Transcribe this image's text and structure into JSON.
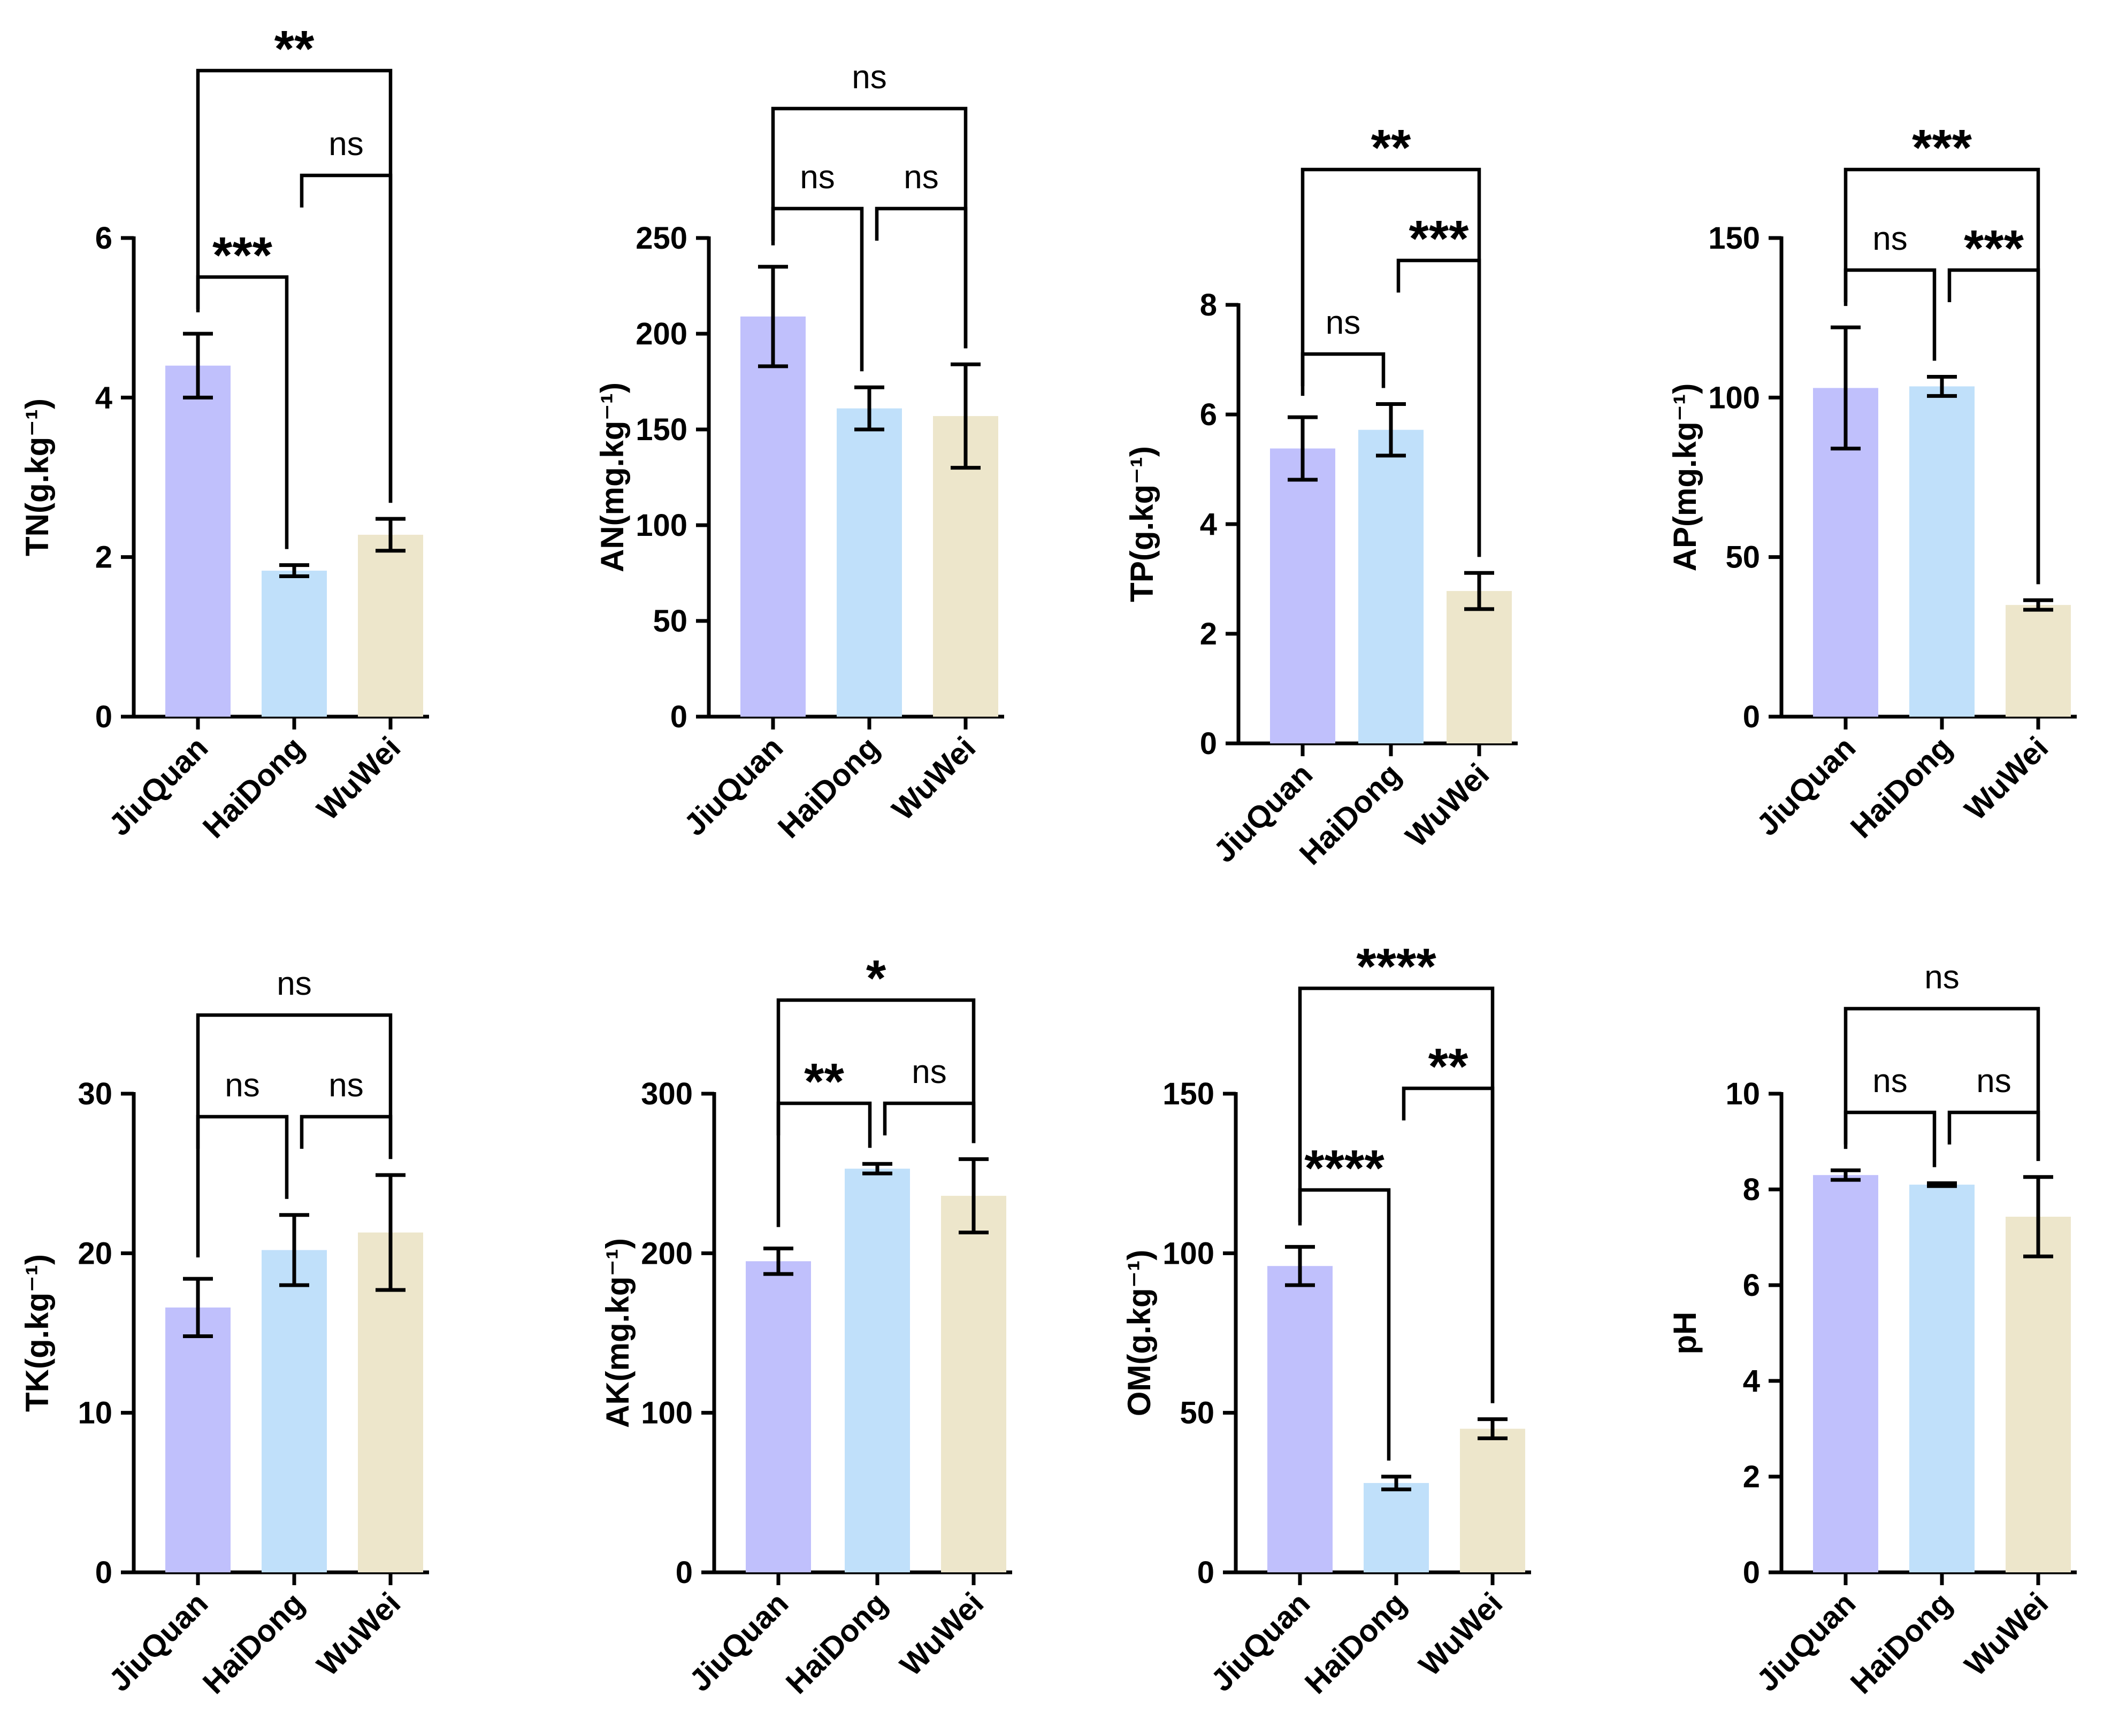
{
  "colors": {
    "JiuQuan": "#c0c0fc",
    "HaiDong": "#c0e0fa",
    "WuWei": "#ede6cb",
    "ink": "#000000"
  },
  "chart_data": [
    {
      "type": "bar",
      "ylabel": "TN(g.kg⁻¹)",
      "categories": [
        "JiuQuan",
        "HaiDong",
        "WuWei"
      ],
      "values": [
        4.4,
        1.83,
        2.28
      ],
      "errors": [
        0.4,
        0.07,
        0.2
      ],
      "ylim": [
        0,
        6
      ],
      "yticks": [
        0,
        2,
        4,
        6
      ],
      "comparisons": [
        {
          "pair": [
            0,
            1
          ],
          "label": "***"
        },
        {
          "pair": [
            1,
            2
          ],
          "label": "ns"
        },
        {
          "pair": [
            0,
            2
          ],
          "label": "**"
        }
      ]
    },
    {
      "type": "bar",
      "ylabel": "AN(mg.kg⁻¹)",
      "categories": [
        "JiuQuan",
        "HaiDong",
        "WuWei"
      ],
      "values": [
        209,
        161,
        157
      ],
      "errors": [
        26,
        11,
        27
      ],
      "ylim": [
        0,
        250
      ],
      "yticks": [
        0,
        50,
        100,
        150,
        200,
        250
      ],
      "comparisons": [
        {
          "pair": [
            0,
            1
          ],
          "label": "ns"
        },
        {
          "pair": [
            1,
            2
          ],
          "label": "ns"
        },
        {
          "pair": [
            0,
            2
          ],
          "label": "ns"
        }
      ]
    },
    {
      "type": "bar",
      "ylabel": "TP(g.kg⁻¹)",
      "categories": [
        "JiuQuan",
        "HaiDong",
        "WuWei"
      ],
      "values": [
        5.38,
        5.72,
        2.78
      ],
      "errors": [
        0.57,
        0.47,
        0.33
      ],
      "ylim": [
        0,
        8
      ],
      "yticks": [
        0,
        2,
        4,
        6,
        8
      ],
      "comparisons": [
        {
          "pair": [
            0,
            1
          ],
          "label": "ns"
        },
        {
          "pair": [
            1,
            2
          ],
          "label": "***"
        },
        {
          "pair": [
            0,
            2
          ],
          "label": "**"
        }
      ]
    },
    {
      "type": "bar",
      "ylabel": "AP(mg.kg⁻¹)",
      "categories": [
        "JiuQuan",
        "HaiDong",
        "WuWei"
      ],
      "values": [
        103,
        103.5,
        35
      ],
      "errors": [
        19,
        3,
        1.5
      ],
      "ylim": [
        0,
        150
      ],
      "yticks": [
        0,
        50,
        100,
        150
      ],
      "comparisons": [
        {
          "pair": [
            0,
            1
          ],
          "label": "ns"
        },
        {
          "pair": [
            1,
            2
          ],
          "label": "***"
        },
        {
          "pair": [
            0,
            2
          ],
          "label": "***"
        }
      ]
    },
    {
      "type": "bar",
      "ylabel": "TK(g.kg⁻¹)",
      "categories": [
        "JiuQuan",
        "HaiDong",
        "WuWei"
      ],
      "values": [
        16.6,
        20.2,
        21.3
      ],
      "errors": [
        1.8,
        2.2,
        3.6
      ],
      "ylim": [
        0,
        30
      ],
      "yticks": [
        0,
        10,
        20,
        30
      ],
      "comparisons": [
        {
          "pair": [
            0,
            1
          ],
          "label": "ns"
        },
        {
          "pair": [
            1,
            2
          ],
          "label": "ns"
        },
        {
          "pair": [
            0,
            2
          ],
          "label": "ns"
        }
      ]
    },
    {
      "type": "bar",
      "ylabel": "AK(mg.kg⁻¹)",
      "categories": [
        "JiuQuan",
        "HaiDong",
        "WuWei"
      ],
      "values": [
        195,
        253,
        236
      ],
      "errors": [
        8,
        3,
        23
      ],
      "ylim": [
        0,
        300
      ],
      "yticks": [
        0,
        100,
        200,
        300
      ],
      "comparisons": [
        {
          "pair": [
            0,
            1
          ],
          "label": "**"
        },
        {
          "pair": [
            1,
            2
          ],
          "label": "ns"
        },
        {
          "pair": [
            0,
            2
          ],
          "label": "*"
        }
      ]
    },
    {
      "type": "bar",
      "ylabel": "OM(g.kg⁻¹)",
      "categories": [
        "JiuQuan",
        "HaiDong",
        "WuWei"
      ],
      "values": [
        96,
        28,
        45
      ],
      "errors": [
        6,
        2,
        3
      ],
      "ylim": [
        0,
        150
      ],
      "yticks": [
        0,
        50,
        100,
        150
      ],
      "comparisons": [
        {
          "pair": [
            0,
            1
          ],
          "label": "****"
        },
        {
          "pair": [
            1,
            2
          ],
          "label": "**"
        },
        {
          "pair": [
            0,
            2
          ],
          "label": "****"
        }
      ]
    },
    {
      "type": "bar",
      "ylabel": "pH",
      "categories": [
        "JiuQuan",
        "HaiDong",
        "WuWei"
      ],
      "values": [
        8.3,
        8.1,
        7.43
      ],
      "errors": [
        0.1,
        0.03,
        0.83
      ],
      "ylim": [
        0,
        10
      ],
      "yticks": [
        0,
        2,
        4,
        6,
        8,
        10
      ],
      "comparisons": [
        {
          "pair": [
            0,
            1
          ],
          "label": "ns"
        },
        {
          "pair": [
            1,
            2
          ],
          "label": "ns"
        },
        {
          "pair": [
            0,
            2
          ],
          "label": "ns"
        }
      ]
    }
  ]
}
